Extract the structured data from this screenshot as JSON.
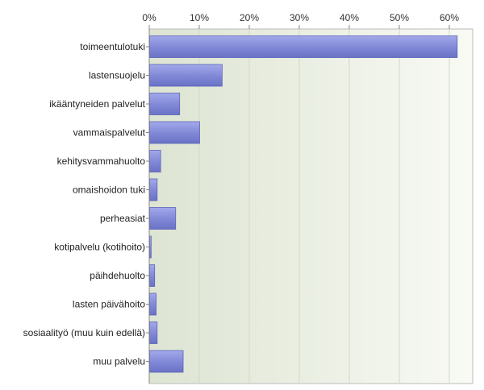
{
  "chart_data": {
    "type": "bar",
    "orientation": "horizontal",
    "categories": [
      "toimeentulotuki",
      "lastensuojelu",
      "ikääntyneiden palvelut",
      "vammaispalvelut",
      "kehitysvammahuolto",
      "omaishoidon tuki",
      "perheasiat",
      "kotipalvelu (kotihoito)",
      "päihdehuolto",
      "lasten päivähoito",
      "sosiaalityö (muu kuin edellä)",
      "muu palvelu"
    ],
    "values": [
      61.5,
      14.5,
      6.0,
      10.0,
      2.2,
      1.5,
      5.2,
      0.3,
      1.0,
      1.3,
      1.5,
      6.7
    ],
    "xticks": [
      "0%",
      "10%",
      "20%",
      "30%",
      "40%",
      "50%",
      "60%"
    ],
    "xlim": [
      0,
      64
    ],
    "legend": "none",
    "grid": true,
    "colors": {
      "bar": "#8088d8",
      "bar_dark": "#5c63b8",
      "plot_bg_left": "#dde4d2",
      "plot_bg_right": "#f8faf4",
      "grid": "#cfd6c4",
      "axis": "#999999"
    }
  }
}
